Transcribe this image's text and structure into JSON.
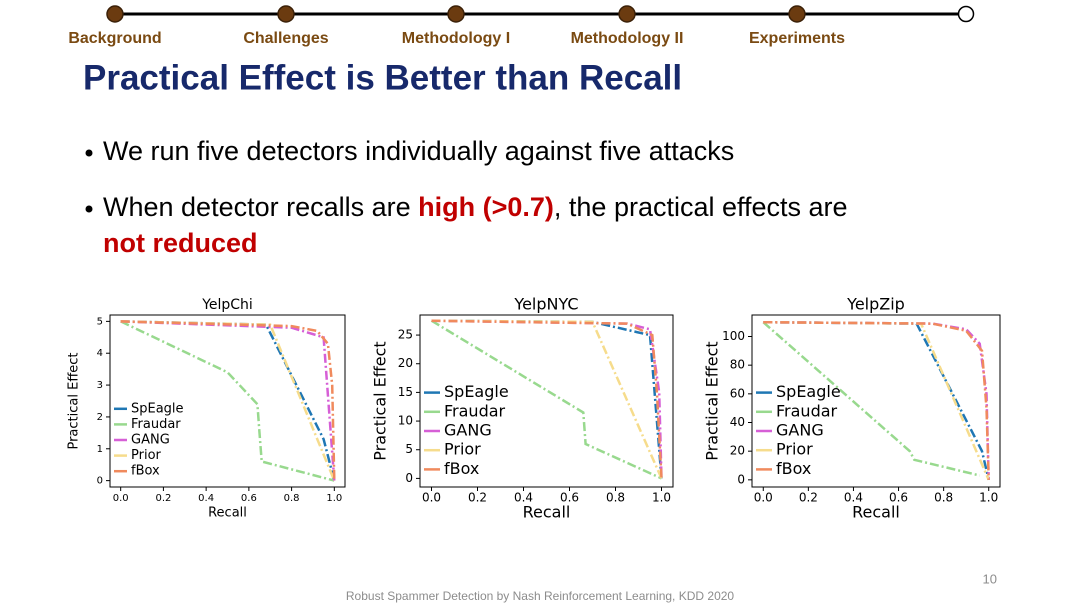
{
  "nav": {
    "items": [
      "Background",
      "Challenges",
      "Methodology I",
      "Methodology II",
      "Experiments"
    ]
  },
  "title": "Practical Effect is Better than Recall",
  "bullets": [
    [
      {
        "text": "We run five detectors individually against five attacks",
        "color": "#000000"
      }
    ],
    [
      {
        "text": "When detector recalls are ",
        "color": "#000000"
      },
      {
        "text": "high (>0.7)",
        "color": "#c00000"
      },
      {
        "text": ", the practical effects are",
        "color": "#000000"
      },
      {
        "text": "not reduced",
        "color": "#c00000"
      }
    ]
  ],
  "chart_data": [
    {
      "type": "line",
      "title": "YelpChi",
      "xlabel": "Recall",
      "ylabel": "Practical Effect",
      "xlim": [
        -0.05,
        1.05
      ],
      "ylim": [
        -0.2,
        5.2
      ],
      "xticks": [
        {
          "value": 0,
          "label": "0.0"
        },
        0.2,
        0.4,
        0.6,
        0.8,
        {
          "value": 1,
          "label": "1.0"
        }
      ],
      "yticks": [
        0,
        1,
        2,
        3,
        4,
        5
      ],
      "legend": "lower left",
      "series": [
        {
          "name": "SpEagle",
          "color": "#1f77b4",
          "x": [
            0,
            0.68,
            0.95,
            1.0
          ],
          "values": [
            5,
            4.9,
            1.3,
            0
          ]
        },
        {
          "name": "Fraudar",
          "color": "#98d98e",
          "x": [
            0,
            0.5,
            0.64,
            0.65,
            0.66,
            1.0
          ],
          "values": [
            5,
            3.4,
            2.4,
            1.5,
            0.6,
            0
          ]
        },
        {
          "name": "GANG",
          "color": "#d65fd6",
          "x": [
            0,
            0.8,
            0.95,
            1.0
          ],
          "values": [
            5,
            4.8,
            4.5,
            0
          ]
        },
        {
          "name": "Prior",
          "color": "#f6dc8c",
          "x": [
            0,
            0.7,
            1.0
          ],
          "values": [
            5,
            4.9,
            0
          ]
        },
        {
          "name": "fBox",
          "color": "#f08a5d",
          "x": [
            0,
            0.8,
            0.92,
            0.97,
            0.99,
            1.0
          ],
          "values": [
            5,
            4.85,
            4.7,
            4.3,
            3,
            0
          ]
        }
      ]
    },
    {
      "type": "line",
      "title": "YelpNYC",
      "xlabel": "Recall",
      "ylabel": "Practical Effect",
      "xlim": [
        -0.05,
        1.05
      ],
      "ylim": [
        -1.5,
        28.5
      ],
      "xticks": [
        {
          "value": 0,
          "label": "0.0"
        },
        0.2,
        0.4,
        0.6,
        0.8,
        {
          "value": 1,
          "label": "1.0"
        }
      ],
      "yticks": [
        0,
        5,
        10,
        15,
        20,
        25
      ],
      "legend": "lower left",
      "series": [
        {
          "name": "SpEagle",
          "color": "#1f77b4",
          "x": [
            0,
            0.7,
            0.95,
            1.0
          ],
          "values": [
            27.5,
            27.3,
            25,
            0
          ]
        },
        {
          "name": "Fraudar",
          "color": "#98d98e",
          "x": [
            0,
            0.66,
            0.67,
            1.0
          ],
          "values": [
            27.5,
            11.5,
            6,
            0
          ]
        },
        {
          "name": "GANG",
          "color": "#d65fd6",
          "x": [
            0,
            0.85,
            0.95,
            0.99,
            1.0
          ],
          "values": [
            27.5,
            27,
            26,
            15,
            0
          ]
        },
        {
          "name": "Prior",
          "color": "#f6dc8c",
          "x": [
            0,
            0.7,
            1.0
          ],
          "values": [
            27.5,
            27.3,
            0
          ]
        },
        {
          "name": "fBox",
          "color": "#f08a5d",
          "x": [
            0,
            0.85,
            0.96,
            0.98,
            1.0
          ],
          "values": [
            27.5,
            27,
            25,
            15,
            0
          ]
        }
      ]
    },
    {
      "type": "line",
      "title": "YelpZip",
      "xlabel": "Recall",
      "ylabel": "Practical Effect",
      "xlim": [
        -0.05,
        1.05
      ],
      "ylim": [
        -5,
        115
      ],
      "xticks": [
        {
          "value": 0,
          "label": "0.0"
        },
        0.2,
        0.4,
        0.6,
        0.8,
        {
          "value": 1,
          "label": "1.0"
        }
      ],
      "yticks": [
        0,
        20,
        40,
        60,
        80,
        100
      ],
      "legend": "lower left",
      "series": [
        {
          "name": "SpEagle",
          "color": "#1f77b4",
          "x": [
            0,
            0.68,
            0.97,
            1.0
          ],
          "values": [
            110,
            109,
            20,
            0
          ]
        },
        {
          "name": "Fraudar",
          "color": "#98d98e",
          "x": [
            0,
            0.65,
            0.67,
            0.96
          ],
          "values": [
            110,
            20,
            14,
            3
          ]
        },
        {
          "name": "GANG",
          "color": "#d65fd6",
          "x": [
            0,
            0.75,
            0.9,
            0.96,
            0.99,
            1.0
          ],
          "values": [
            110,
            109,
            105,
            95,
            60,
            0
          ]
        },
        {
          "name": "Prior",
          "color": "#f6dc8c",
          "x": [
            0,
            0.7,
            1.0
          ],
          "values": [
            110,
            109,
            0
          ]
        },
        {
          "name": "fBox",
          "color": "#f08a5d",
          "x": [
            0,
            0.75,
            0.9,
            0.97,
            0.99,
            1.0
          ],
          "values": [
            110,
            109,
            104,
            90,
            50,
            0
          ]
        }
      ]
    }
  ],
  "footer": "Robust Spammer Detection by Nash Reinforcement Learning, KDD 2020",
  "page_number": "10"
}
